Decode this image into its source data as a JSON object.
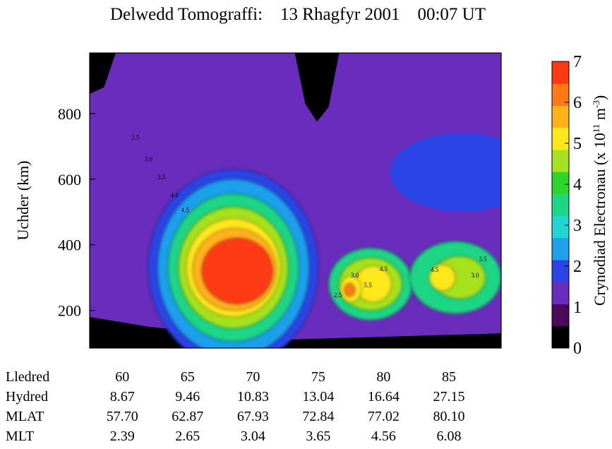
{
  "chart_data": {
    "type": "heatmap",
    "title": "Delwedd Tomograffi:    13 Rhagfyr 2001    00:07 UT",
    "ylabel": "Uchder (km)",
    "xlim": [
      57.5,
      89
    ],
    "ylim": [
      85,
      985
    ],
    "y_ticks": [
      "200",
      "400",
      "600",
      "800"
    ],
    "colorbar": {
      "label": "Crynodiad Electronau (x 10",
      "label_exp": "11",
      "label_unit": " m",
      "label_unit_exp": "-3",
      "label_close": ")",
      "range": [
        0,
        7
      ],
      "ticks": [
        "0",
        "1",
        "2",
        "3",
        "4",
        "5",
        "6",
        "7"
      ],
      "colors": [
        "#000000",
        "#4b0a5b",
        "#6a2cbc",
        "#2a44e6",
        "#1ea0ec",
        "#1fd6d2",
        "#1fd685",
        "#2fd52a",
        "#a6e21f",
        "#ffe81a",
        "#ffb21a",
        "#ff7a14",
        "#ff3a12"
      ]
    },
    "contour_labels": [
      "2.5",
      "3.0",
      "3.5",
      "4.0",
      "4.5",
      "3.0",
      "2.5",
      "4.5",
      "5.5",
      "4.5",
      "3.0",
      "3.5"
    ],
    "blobs": [
      {
        "cx": 68.5,
        "cy": 330,
        "rx": 6.5,
        "ry": 300,
        "v": 1.5
      },
      {
        "cx": 68.5,
        "cy": 330,
        "rx": 5.8,
        "ry": 270,
        "v": 2.5
      },
      {
        "cx": 68.5,
        "cy": 330,
        "rx": 5.0,
        "ry": 225,
        "v": 3.5
      },
      {
        "cx": 68.5,
        "cy": 330,
        "rx": 4.2,
        "ry": 185,
        "v": 4.5
      },
      {
        "cx": 68.5,
        "cy": 330,
        "rx": 3.6,
        "ry": 150,
        "v": 5.5
      },
      {
        "cx": 68.6,
        "cy": 325,
        "rx": 3.2,
        "ry": 125,
        "v": 6.0
      },
      {
        "cx": 68.8,
        "cy": 320,
        "rx": 2.7,
        "ry": 100,
        "v": 7.0
      },
      {
        "cx": 79.0,
        "cy": 280,
        "rx": 3.2,
        "ry": 110,
        "v": 3.5
      },
      {
        "cx": 79.0,
        "cy": 280,
        "rx": 2.4,
        "ry": 80,
        "v": 4.5
      },
      {
        "cx": 79.2,
        "cy": 280,
        "rx": 1.4,
        "ry": 55,
        "v": 5.5
      },
      {
        "cx": 77.5,
        "cy": 265,
        "rx": 0.8,
        "ry": 40,
        "v": 5.5
      },
      {
        "cx": 77.4,
        "cy": 262,
        "rx": 0.4,
        "ry": 20,
        "v": 6.5
      },
      {
        "cx": 85.5,
        "cy": 300,
        "rx": 3.5,
        "ry": 110,
        "v": 3.5
      },
      {
        "cx": 85.8,
        "cy": 300,
        "rx": 2.0,
        "ry": 65,
        "v": 4.5
      },
      {
        "cx": 84.5,
        "cy": 300,
        "rx": 1.0,
        "ry": 40,
        "v": 5.0
      }
    ]
  },
  "table": {
    "rows": [
      {
        "label": "Lledred",
        "values": [
          "60",
          "65",
          "70",
          "75",
          "80",
          "85"
        ]
      },
      {
        "label": "Hydred",
        "values": [
          "8.67",
          "9.46",
          "10.83",
          "13.04",
          "16.64",
          "27.15"
        ]
      },
      {
        "label": "MLAT",
        "values": [
          "57.70",
          "62.87",
          "67.93",
          "72.84",
          "77.02",
          "80.10"
        ]
      },
      {
        "label": "MLT",
        "values": [
          "2.39",
          "2.65",
          "3.04",
          "3.65",
          "4.56",
          "6.08"
        ]
      }
    ]
  }
}
